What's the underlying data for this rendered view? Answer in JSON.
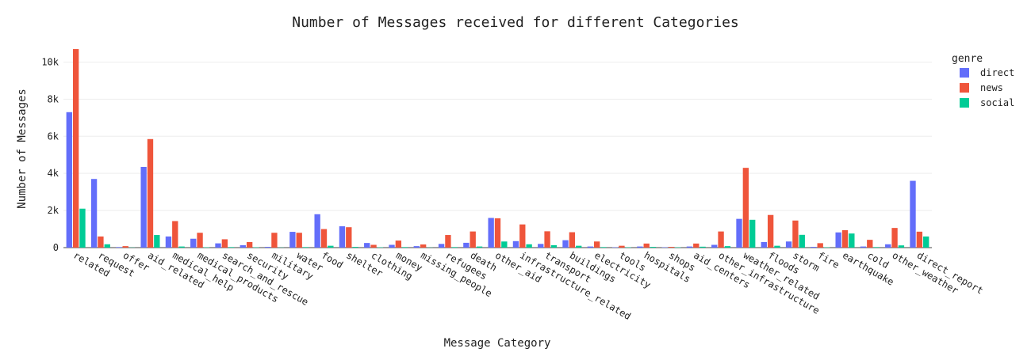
{
  "chart_data": {
    "type": "bar",
    "title": "Number of Messages received for different Categories",
    "xlabel": "Message Category",
    "ylabel": "Number of Messages",
    "ylim": [
      0,
      11000
    ],
    "yticks": [
      0,
      2000,
      4000,
      6000,
      8000,
      10000
    ],
    "ytick_labels": [
      "0",
      "2k",
      "4k",
      "6k",
      "8k",
      "10k"
    ],
    "grid": false,
    "legend_title": "genre",
    "legend_position": "top-right",
    "categories": [
      "related",
      "request",
      "offer",
      "aid_related",
      "medical_help",
      "medical_products",
      "search_and_rescue",
      "security",
      "military",
      "water",
      "food",
      "shelter",
      "clothing",
      "money",
      "missing_people",
      "refugees",
      "death",
      "other_aid",
      "infrastructure_related",
      "transport",
      "buildings",
      "electricity",
      "tools",
      "hospitals",
      "shops",
      "aid_centers",
      "other_infrastructure",
      "weather_related",
      "floods",
      "storm",
      "fire",
      "earthquake",
      "cold",
      "other_weather",
      "direct_report"
    ],
    "series": [
      {
        "name": "direct",
        "color": "#636efa",
        "values": [
          7300,
          3700,
          30,
          4350,
          600,
          480,
          230,
          130,
          40,
          850,
          1800,
          1150,
          250,
          150,
          80,
          200,
          260,
          1600,
          350,
          200,
          400,
          60,
          20,
          60,
          20,
          60,
          150,
          1550,
          300,
          330,
          40,
          820,
          60,
          180,
          3600
        ]
      },
      {
        "name": "news",
        "color": "#ef553b",
        "values": [
          10700,
          600,
          80,
          5850,
          1430,
          800,
          450,
          300,
          800,
          800,
          1000,
          1100,
          150,
          380,
          170,
          680,
          870,
          1580,
          1250,
          880,
          830,
          330,
          100,
          220,
          40,
          220,
          870,
          4300,
          1760,
          1460,
          240,
          940,
          420,
          1060,
          860
        ]
      },
      {
        "name": "social",
        "color": "#00cc96",
        "values": [
          2100,
          180,
          10,
          680,
          60,
          20,
          30,
          20,
          10,
          30,
          100,
          40,
          20,
          30,
          10,
          30,
          60,
          330,
          180,
          130,
          100,
          30,
          20,
          40,
          20,
          50,
          80,
          1500,
          100,
          690,
          20,
          760,
          30,
          120,
          600
        ]
      }
    ]
  }
}
